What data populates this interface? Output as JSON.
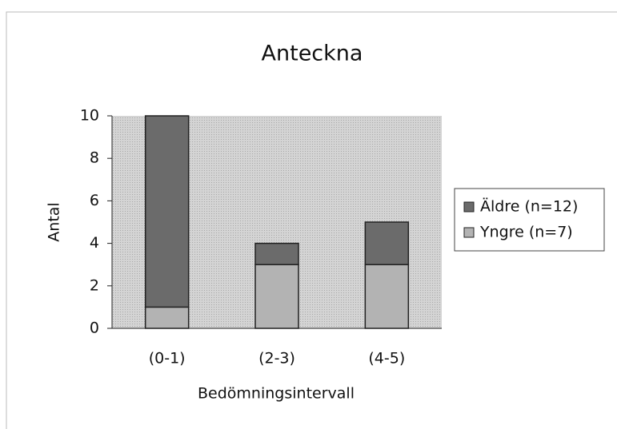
{
  "chart_data": {
    "type": "stacked_bar",
    "title": "Anteckna",
    "x_label": "Bedömningsintervall",
    "y_label": "Antal",
    "categories": [
      "(0-1)",
      "(2-3)",
      "(4-5)"
    ],
    "series": [
      {
        "name": "Äldre (n=12)",
        "color": "#6b6b6b",
        "values": [
          9,
          1,
          2
        ]
      },
      {
        "name": "Yngre (n=7)",
        "color": "#b3b3b3",
        "values": [
          1,
          3,
          3
        ]
      }
    ],
    "ylim": [
      0,
      10
    ],
    "yticks": [
      0,
      2,
      4,
      6,
      8,
      10
    ],
    "legend": "right"
  }
}
